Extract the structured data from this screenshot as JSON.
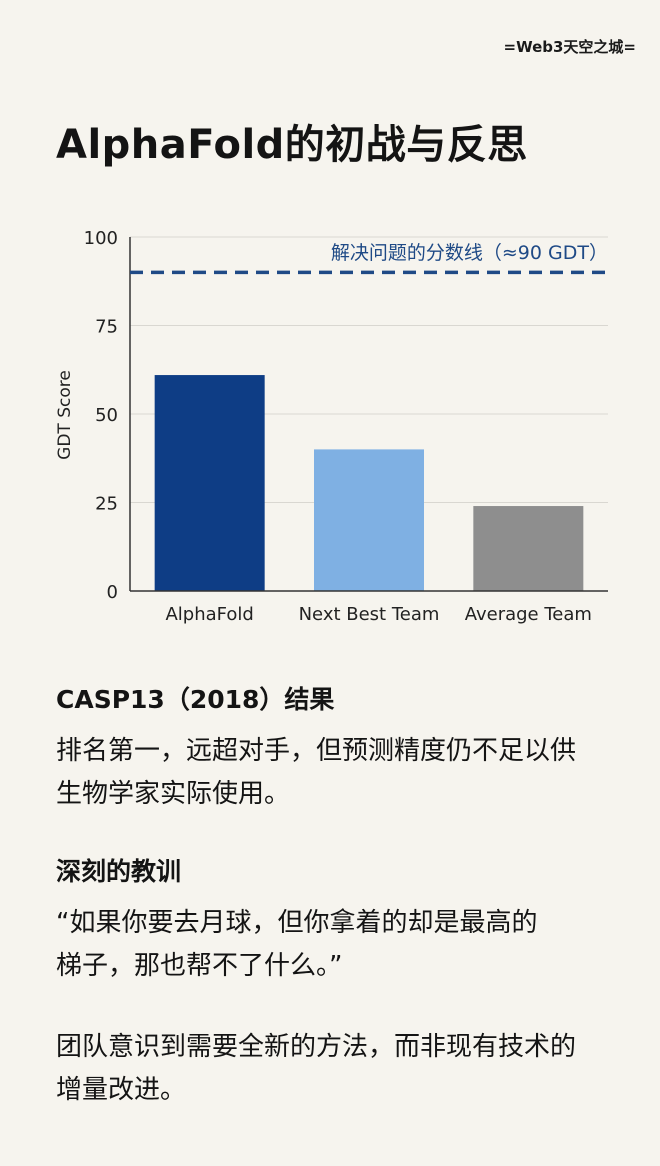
{
  "brand": "=Web3天空之城=",
  "title": "AlphaFold的初战与反思",
  "chart_data": {
    "type": "bar",
    "ylabel": "GDT Score",
    "ylim": [
      0,
      100
    ],
    "yticks": [
      0,
      25,
      50,
      75,
      100
    ],
    "categories": [
      "AlphaFold",
      "Next Best Team",
      "Average Team"
    ],
    "values": [
      61,
      40,
      24
    ],
    "colors": [
      "#0e3d85",
      "#7fb0e3",
      "#8e8e8e"
    ],
    "grid": true,
    "reference_line": {
      "value": 90,
      "label": "解决问题的分数线（≈90 GDT）",
      "color": "#1f4a86",
      "style": "dashed"
    }
  },
  "results": {
    "heading": "CASP13（2018）结果",
    "text_line1": "排名第一，远超对手，但预测精度仍不足以供",
    "text_line2": "生物学家实际使用。"
  },
  "lesson": {
    "heading": "深刻的教训",
    "quote_line1": "“如果你要去月球，但你拿着的却是最高的",
    "quote_line2": "梯子，那也帮不了什么。”",
    "text_line1": "团队意识到需要全新的方法，而非现有技术的",
    "text_line2": "增量改进。"
  }
}
